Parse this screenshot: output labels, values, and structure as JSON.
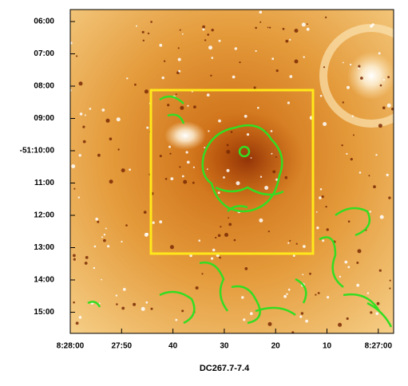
{
  "image": {
    "caption": "DC267.7-7.4",
    "y_tick_labels": [
      "06:00",
      "07:00",
      "08:00",
      "09:00",
      "-51:10:00",
      "11:00",
      "12:00",
      "13:00",
      "14:00",
      "15:00"
    ],
    "x_tick_labels": [
      "8:28:00",
      "27:50",
      "40",
      "30",
      "20",
      "10",
      "8:27:00"
    ]
  }
}
